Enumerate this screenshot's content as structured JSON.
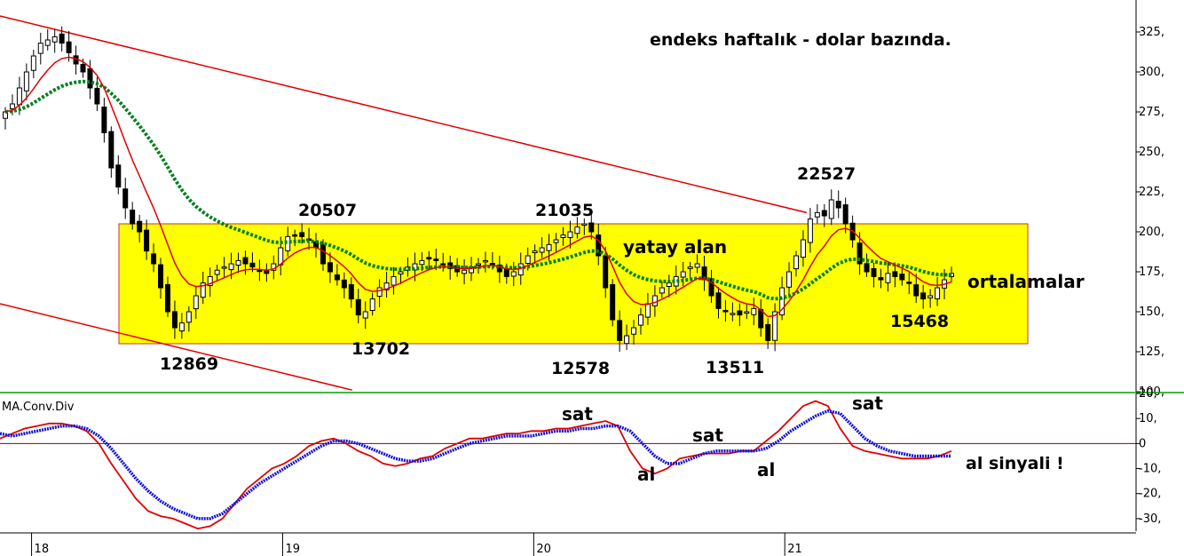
{
  "chart_data": [
    {
      "type": "candlestick",
      "title": "endeks haftalık - dolar bazında.",
      "y_axis": {
        "ticks": [
          "325,",
          "300,",
          "275,",
          "250,",
          "225,",
          "200,",
          "175,",
          "150,",
          "125,",
          "100,"
        ],
        "ylim": [
          100,
          345
        ],
        "side": "right"
      },
      "x_axis": {
        "ticks": [
          "18",
          "19",
          "20",
          "21"
        ]
      },
      "zone": {
        "label": "yatay alan",
        "range": [
          130,
          205
        ],
        "color": "#ffff00"
      },
      "trend_channel": {
        "upper": [
          [
            0,
            335
          ],
          [
            0.71,
            212
          ]
        ],
        "lower": [
          [
            0,
            155
          ],
          [
            0.31,
            101
          ]
        ]
      },
      "averages_label": "ortalamalar",
      "level_labels": [
        "12869",
        "20507",
        "13702",
        "21035",
        "12578",
        "13511",
        "22527",
        "15468"
      ],
      "weekly_closes": [
        275,
        280,
        290,
        300,
        310,
        318,
        320,
        322,
        318,
        312,
        305,
        300,
        290,
        280,
        262,
        240,
        228,
        215,
        205,
        200,
        188,
        180,
        165,
        150,
        140,
        143,
        150,
        160,
        168,
        172,
        176,
        178,
        180,
        182,
        180,
        178,
        176,
        174,
        180,
        190,
        197,
        198,
        197,
        195,
        190,
        180,
        175,
        170,
        165,
        158,
        148,
        150,
        158,
        165,
        168,
        172,
        175,
        178,
        180,
        182,
        183,
        182,
        180,
        177,
        175,
        176,
        178,
        180,
        182,
        180,
        175,
        172,
        175,
        180,
        185,
        188,
        190,
        192,
        195,
        198,
        200,
        203,
        205,
        200,
        185,
        165,
        145,
        132,
        135,
        140,
        148,
        155,
        160,
        165,
        168,
        172,
        175,
        178,
        180,
        170,
        160,
        152,
        150,
        149,
        148,
        150,
        152,
        140,
        132,
        150,
        165,
        175,
        185,
        195,
        208,
        212,
        210,
        220,
        215,
        205,
        195,
        180,
        175,
        172,
        170,
        174,
        172,
        170,
        168,
        160,
        158,
        160,
        165,
        170,
        174
      ],
      "colors": {
        "candle_up": "#ffffff",
        "candle_down": "#000000",
        "ma_short": "#e00000",
        "ma_long": "#00801e",
        "channel": "#e00000"
      }
    },
    {
      "type": "line",
      "title": "MA.Conv.Div",
      "y_axis": {
        "ticks": [
          "20,",
          "10,",
          "0",
          "-10,",
          "-20,",
          "-30,"
        ],
        "ylim": [
          -35,
          20
        ],
        "zero_line": true
      },
      "series": [
        {
          "name": "",
          "color": "#e00000",
          "values": [
            2,
            4,
            6,
            7,
            8,
            8,
            7,
            5,
            0,
            -8,
            -15,
            -22,
            -27,
            -29,
            -30,
            -32,
            -34,
            -33,
            -30,
            -24,
            -18,
            -14,
            -10,
            -8,
            -5,
            -1,
            1,
            2,
            0,
            -3,
            -5,
            -8,
            -9,
            -8,
            -6,
            -5,
            -2,
            0,
            2,
            2,
            3,
            4,
            4,
            5,
            5,
            6,
            6,
            7,
            8,
            9,
            7,
            -3,
            -10,
            -12,
            -10,
            -6,
            -5,
            -4,
            -4,
            -4,
            -3,
            -3,
            1,
            5,
            10,
            15,
            17,
            15,
            6,
            -1,
            -3,
            -4,
            -5,
            -6,
            -6,
            -6,
            -5,
            -3
          ]
        },
        {
          "name": "",
          "color": "#1414d2",
          "values": [
            4,
            3,
            4,
            5,
            6,
            7,
            7,
            6,
            3,
            -2,
            -8,
            -14,
            -19,
            -23,
            -26,
            -28,
            -30,
            -30,
            -28,
            -24,
            -20,
            -16,
            -13,
            -10,
            -7,
            -4,
            -1,
            1,
            1,
            0,
            -2,
            -4,
            -6,
            -7,
            -7,
            -6,
            -4,
            -2,
            0,
            1,
            2,
            3,
            3,
            3,
            4,
            5,
            5,
            6,
            6,
            7,
            7,
            5,
            0,
            -5,
            -8,
            -8,
            -6,
            -4,
            -3,
            -3,
            -3,
            -3,
            -2,
            1,
            5,
            8,
            11,
            13,
            12,
            7,
            2,
            -1,
            -3,
            -4,
            -5,
            -5,
            -5,
            -5
          ]
        }
      ],
      "annotations": [
        "sat",
        "al",
        "sat",
        "al",
        "sat",
        "al sinyali !"
      ]
    }
  ]
}
